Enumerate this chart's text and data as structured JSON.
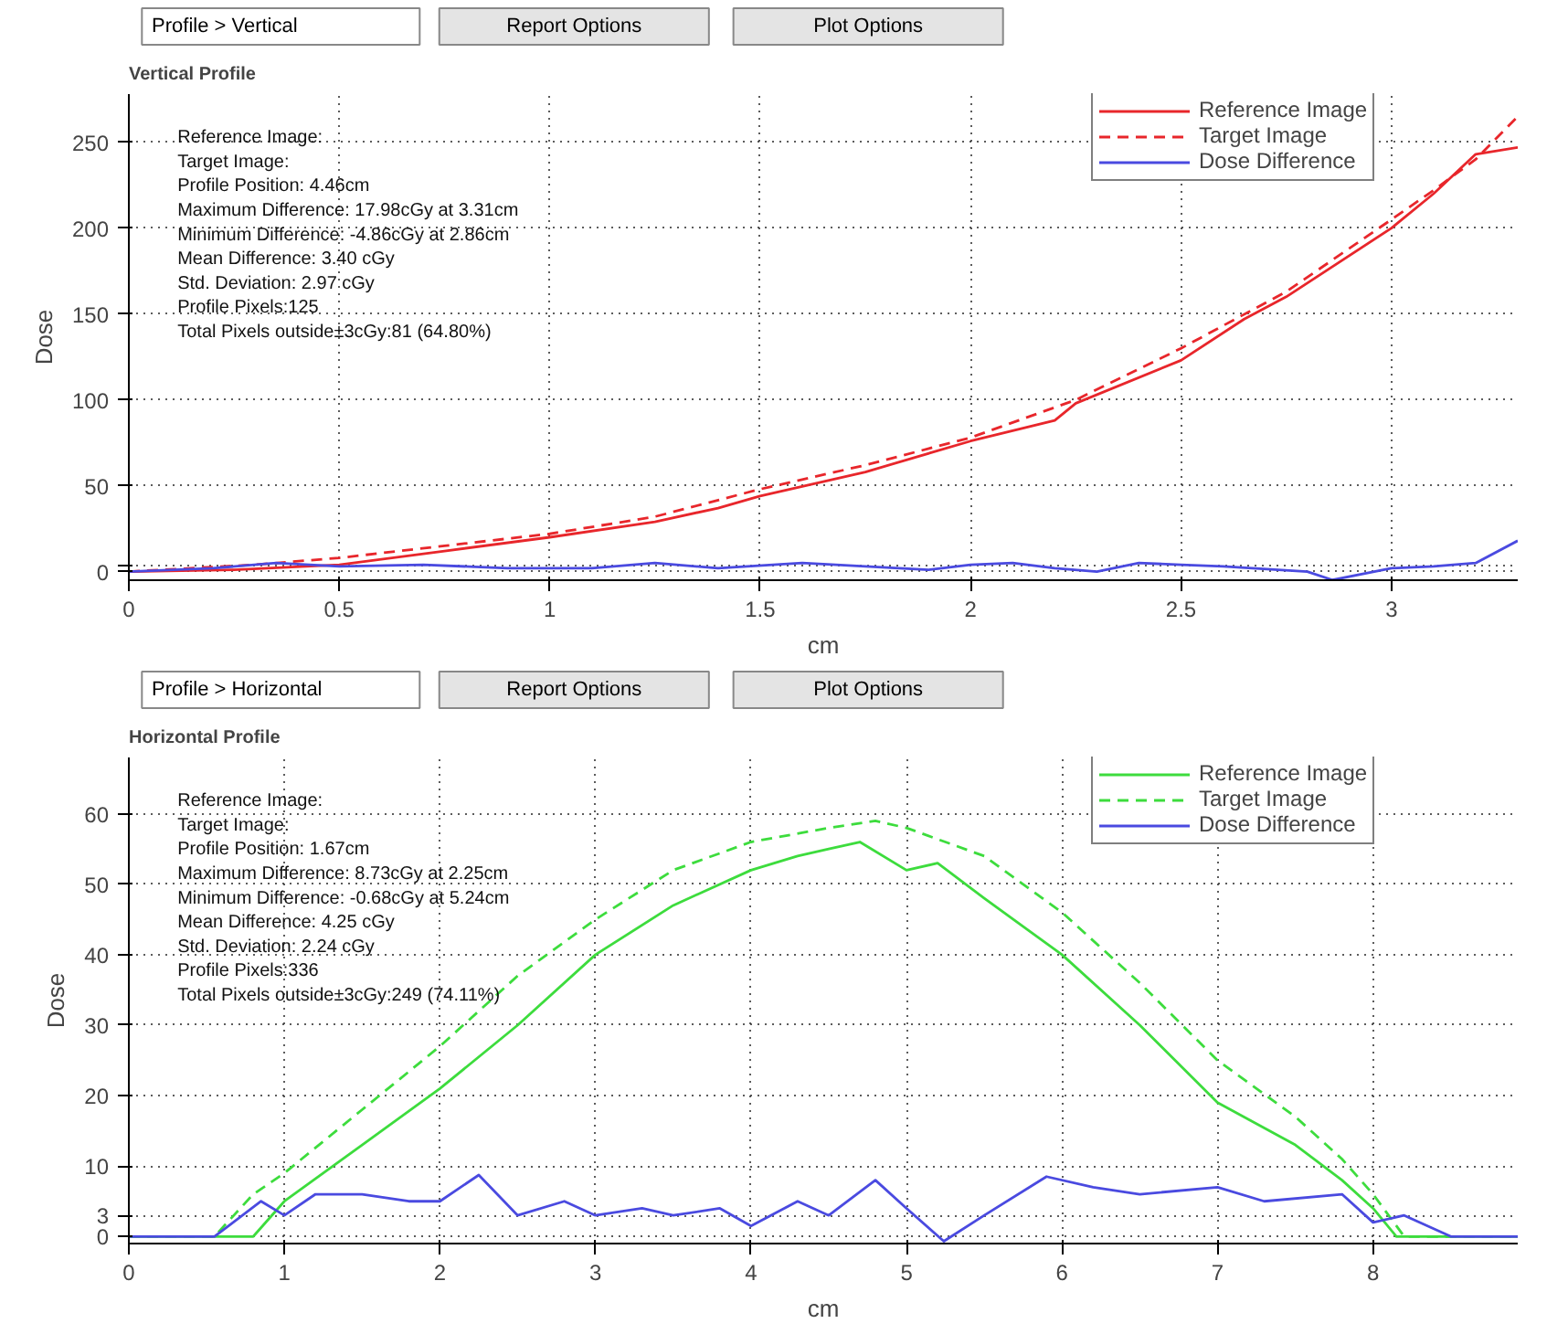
{
  "chart_data": [
    {
      "type": "line",
      "title": "Vertical Profile",
      "xlabel": "cm",
      "ylabel": "Dose",
      "xlim": [
        0,
        3.3
      ],
      "ylim": [
        -5,
        278
      ],
      "xticks": [
        0,
        0.5,
        1,
        1.5,
        2,
        2.5,
        3
      ],
      "yticks": [
        0,
        {
          "value": 3,
          "label": null
        },
        50,
        100,
        150,
        200,
        250
      ],
      "grid": true,
      "legend": "top right",
      "annotations": [
        "Profile > Vertical",
        "Report Options",
        "Plot Options",
        "Reference Image:",
        "Target Image:",
        "Profile Position: 4.46cm",
        "Maximum Difference: 17.98cGy at 3.31cm",
        "Minimum Difference: -4.86cGy at 2.86cm",
        "Mean Difference: 3.40 cGy",
        "Std. Deviation: 2.97 cGy",
        "Profile Pixels:125",
        "Total Pixels outside±3cGy:81 (64.80%)"
      ],
      "series": [
        {
          "name": "Reference Image",
          "color": "#e8262b",
          "line_style": "solid",
          "x": [
            0,
            0.25,
            0.5,
            0.75,
            1,
            1.25,
            1.4,
            1.5,
            1.75,
            2,
            2.2,
            2.25,
            2.5,
            2.65,
            2.75,
            3,
            3.1,
            3.2,
            3.3
          ],
          "values": [
            0,
            1,
            4,
            12,
            20,
            29,
            37,
            44,
            58,
            76,
            88,
            98,
            123,
            147,
            160,
            200,
            220,
            243,
            247
          ]
        },
        {
          "name": "Target Image",
          "color": "#e8262b",
          "line_style": "dashed",
          "x": [
            0,
            0.3,
            0.5,
            0.75,
            1,
            1.25,
            1.5,
            1.75,
            2,
            2.25,
            2.5,
            2.75,
            3,
            3.1,
            3.2,
            3.3
          ],
          "values": [
            0,
            4,
            8,
            15,
            22,
            32,
            48,
            62,
            78,
            100,
            130,
            163,
            205,
            222,
            240,
            265
          ]
        },
        {
          "name": "Dose Difference",
          "color": "#4a4ae0",
          "line_style": "solid",
          "x": [
            0,
            0.2,
            0.35,
            0.5,
            0.7,
            0.9,
            1.1,
            1.25,
            1.4,
            1.6,
            1.75,
            1.9,
            2,
            2.1,
            2.2,
            2.3,
            2.4,
            2.5,
            2.6,
            2.8,
            2.86,
            3,
            3.1,
            3.2,
            3.3
          ],
          "values": [
            0,
            2,
            5,
            3,
            4,
            2,
            2,
            5,
            2,
            5,
            3,
            1,
            4,
            5,
            2,
            0,
            5,
            4,
            3,
            0,
            -4.86,
            2,
            3,
            5,
            17.98
          ]
        }
      ]
    },
    {
      "type": "line",
      "title": "Horizontal Profile",
      "xlabel": "cm",
      "ylabel": "Dose",
      "xlim": [
        0,
        8.93
      ],
      "ylim": [
        -1,
        68
      ],
      "xticks": [
        0,
        1,
        2,
        3,
        4,
        5,
        6,
        7,
        8
      ],
      "yticks": [
        0,
        3,
        10,
        20,
        30,
        40,
        50,
        60
      ],
      "grid": true,
      "legend": "top right",
      "annotations": [
        "Profile > Horizontal",
        "Report Options",
        "Plot Options",
        "Reference Image:",
        "Target Image:",
        "Profile Position: 1.67cm",
        "Maximum Difference: 8.73cGy at 2.25cm",
        "Minimum Difference: -0.68cGy at 5.24cm",
        "Mean Difference: 4.25 cGy",
        "Std. Deviation: 2.24 cGy",
        "Profile Pixels:336",
        "Total Pixels outside±3cGy:249 (74.11%)"
      ],
      "series": [
        {
          "name": "Reference Image",
          "color": "#3ddc3d",
          "line_style": "solid",
          "x": [
            0,
            0.8,
            1,
            1.5,
            2,
            2.5,
            3,
            3.5,
            4,
            4.3,
            4.5,
            4.7,
            5,
            5.2,
            5.5,
            6,
            6.5,
            7,
            7.5,
            7.8,
            8,
            8.15,
            8.93
          ],
          "values": [
            0,
            0,
            5,
            13,
            21,
            30,
            40,
            47,
            52,
            54,
            55,
            56,
            52,
            53,
            48,
            40,
            30,
            19,
            13,
            8,
            4,
            0,
            0
          ]
        },
        {
          "name": "Target Image",
          "color": "#3ddc3d",
          "line_style": "dashed",
          "x": [
            0,
            0.55,
            0.8,
            1,
            1.5,
            2,
            2.5,
            3,
            3.5,
            4,
            4.5,
            4.8,
            5,
            5.5,
            6,
            6.5,
            7,
            7.5,
            7.8,
            8,
            8.2,
            8.93
          ],
          "values": [
            0,
            0,
            6,
            9,
            18,
            27,
            37,
            45,
            52,
            56,
            58,
            59,
            58,
            54,
            46,
            36,
            25,
            17,
            11,
            6,
            0,
            0
          ]
        },
        {
          "name": "Dose Difference",
          "color": "#4a4ae0",
          "line_style": "solid",
          "x": [
            0,
            0.55,
            0.85,
            1,
            1.2,
            1.5,
            1.8,
            2,
            2.25,
            2.5,
            2.8,
            3,
            3.3,
            3.5,
            3.8,
            4,
            4.3,
            4.5,
            4.8,
            5,
            5.24,
            5.5,
            5.9,
            6.2,
            6.5,
            7,
            7.3,
            7.8,
            8,
            8.2,
            8.5,
            8.93
          ],
          "values": [
            0,
            0,
            5,
            3,
            6,
            6,
            5,
            5,
            8.73,
            3,
            5,
            3,
            4,
            3,
            4,
            1.5,
            5,
            3,
            8,
            4,
            -0.68,
            3,
            8.5,
            7,
            6,
            7,
            5,
            6,
            2,
            3,
            0,
            0
          ]
        }
      ]
    }
  ]
}
